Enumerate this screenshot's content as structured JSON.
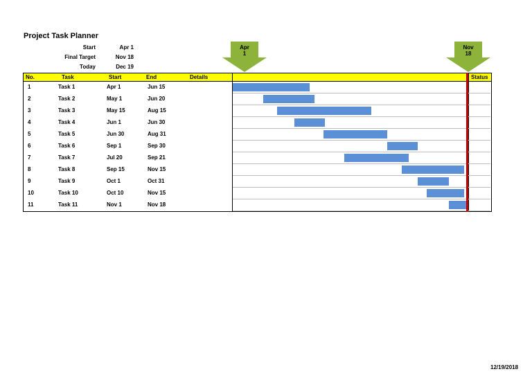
{
  "title": "Project Task Planner",
  "meta": [
    {
      "label": "Start",
      "value": "Apr 1"
    },
    {
      "label": "Final Target",
      "value": "Nov 18"
    },
    {
      "label": "Today",
      "value": "Dec 19"
    }
  ],
  "markers": {
    "start": {
      "label": "Apr\n1",
      "line1": "Apr",
      "line2": "1"
    },
    "target": {
      "label": "Nov\n18",
      "line1": "Nov",
      "line2": "18"
    }
  },
  "headers": {
    "no": "No.",
    "task": "Task",
    "start": "Start",
    "end": "End",
    "details": "Details",
    "status": "Status"
  },
  "tasks": [
    {
      "no": "1",
      "task": "Task 1",
      "start": "Apr 1",
      "end": "Jun 15"
    },
    {
      "no": "2",
      "task": "Task 2",
      "start": "May 1",
      "end": "Jun 20"
    },
    {
      "no": "3",
      "task": "Task 3",
      "start": "May 15",
      "end": "Aug 15"
    },
    {
      "no": "4",
      "task": "Task 4",
      "start": "Jun 1",
      "end": "Jun 30"
    },
    {
      "no": "5",
      "task": "Task 5",
      "start": "Jun 30",
      "end": "Aug 31"
    },
    {
      "no": "6",
      "task": "Task 6",
      "start": "Sep 1",
      "end": "Sep 30"
    },
    {
      "no": "7",
      "task": "Task 7",
      "start": "Jul 20",
      "end": "Sep 21"
    },
    {
      "no": "8",
      "task": "Task 8",
      "start": "Sep 15",
      "end": "Nov 15"
    },
    {
      "no": "9",
      "task": "Task 9",
      "start": "Oct 1",
      "end": "Oct 31"
    },
    {
      "no": "10",
      "task": "Task 10",
      "start": "Oct 10",
      "end": "Nov 15"
    },
    {
      "no": "11",
      "task": "Task 11",
      "start": "Nov 1",
      "end": "Nov 18"
    }
  ],
  "footer": {
    "date": "12/19/2018"
  },
  "colors": {
    "header_bg": "#ffff00",
    "bar": "#5b8fd6",
    "arrow": "#8db33a",
    "today_line": "#c00000"
  }
}
